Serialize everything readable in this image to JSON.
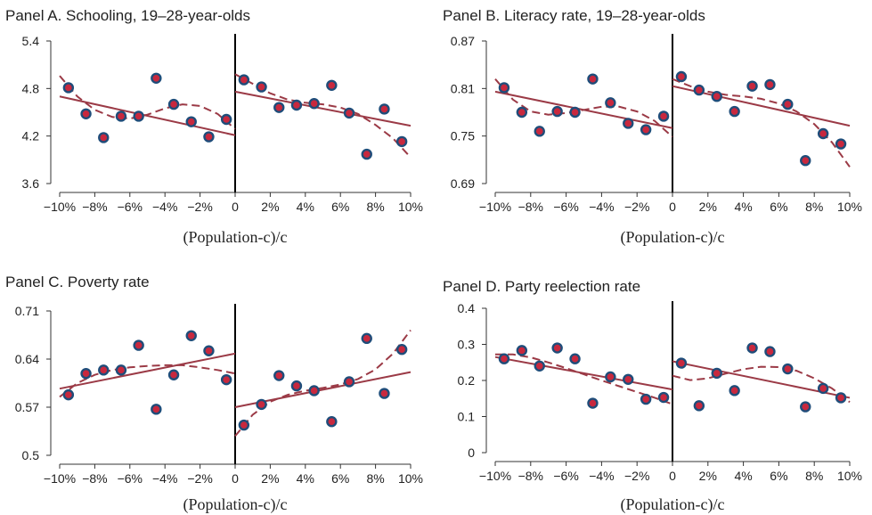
{
  "colors": {
    "fit": "#9b3a46",
    "marker_fill": "#c8283e",
    "marker_edge": "#1f4d7a",
    "axis": "#333333",
    "cutoff": "#000000"
  },
  "chart_data": [
    {
      "type": "scatter",
      "title": "Panel A. Schooling, 19–28-year-olds",
      "xlabel": "(Population-c)/c",
      "xlim": [
        -10,
        10
      ],
      "ylim": [
        3.6,
        5.4
      ],
      "xticks": [
        "−10%",
        "−8%",
        "−6%",
        "−4%",
        "−2%",
        "0",
        "2%",
        "4%",
        "6%",
        "8%",
        "10%"
      ],
      "yticks": [
        "3.6",
        "4.2",
        "4.8",
        "5.4"
      ],
      "x": [
        -9.5,
        -8.5,
        -7.5,
        -6.5,
        -5.5,
        -4.5,
        -3.5,
        -2.5,
        -1.5,
        -0.5,
        0.5,
        1.5,
        2.5,
        3.5,
        4.5,
        5.5,
        6.5,
        7.5,
        8.5,
        9.5
      ],
      "y": [
        4.81,
        4.48,
        4.18,
        4.45,
        4.45,
        4.93,
        4.6,
        4.38,
        4.19,
        4.41,
        4.91,
        4.82,
        4.56,
        4.59,
        4.61,
        4.84,
        4.49,
        3.97,
        4.54,
        4.13
      ],
      "linear_fit": {
        "left": [
          [
            -10,
            4.7
          ],
          [
            0,
            4.21
          ]
        ],
        "right": [
          [
            0,
            4.76
          ],
          [
            10,
            4.33
          ]
        ]
      },
      "poly_fit": {
        "left": [
          [
            -10,
            4.96
          ],
          [
            -9,
            4.7
          ],
          [
            -8,
            4.53
          ],
          [
            -7,
            4.44
          ],
          [
            -6,
            4.42
          ],
          [
            -5,
            4.47
          ],
          [
            -4,
            4.55
          ],
          [
            -3,
            4.6
          ],
          [
            -2,
            4.58
          ],
          [
            -1,
            4.48
          ],
          [
            0,
            4.29
          ]
        ],
        "right": [
          [
            0,
            4.98
          ],
          [
            1,
            4.86
          ],
          [
            2,
            4.74
          ],
          [
            3,
            4.66
          ],
          [
            4,
            4.62
          ],
          [
            5,
            4.6
          ],
          [
            6,
            4.56
          ],
          [
            7,
            4.48
          ],
          [
            8,
            4.34
          ],
          [
            9,
            4.17
          ],
          [
            10,
            3.93
          ]
        ]
      }
    },
    {
      "type": "scatter",
      "title": "Panel B. Literacy rate, 19–28-year-olds",
      "xlabel": "(Population-c)/c",
      "xlim": [
        -10,
        10
      ],
      "ylim": [
        0.69,
        0.87
      ],
      "xticks": [
        "−10%",
        "−8%",
        "−6%",
        "−4%",
        "−2%",
        "0",
        "2%",
        "4%",
        "6%",
        "8%",
        "10%"
      ],
      "yticks": [
        "0.69",
        "0.75",
        "0.81",
        "0.87"
      ],
      "x": [
        -9.5,
        -8.5,
        -7.5,
        -6.5,
        -5.5,
        -4.5,
        -3.5,
        -2.5,
        -1.5,
        -0.5,
        0.5,
        1.5,
        2.5,
        3.5,
        4.5,
        5.5,
        6.5,
        7.5,
        8.5,
        9.5
      ],
      "y": [
        0.811,
        0.78,
        0.756,
        0.781,
        0.78,
        0.822,
        0.792,
        0.766,
        0.758,
        0.775,
        0.825,
        0.808,
        0.8,
        0.781,
        0.813,
        0.815,
        0.79,
        0.719,
        0.753,
        0.74
      ],
      "linear_fit": {
        "left": [
          [
            -10,
            0.806
          ],
          [
            0,
            0.76
          ]
        ],
        "right": [
          [
            0,
            0.813
          ],
          [
            10,
            0.763
          ]
        ]
      },
      "poly_fit": {
        "left": [
          [
            -10,
            0.822
          ],
          [
            -9,
            0.796
          ],
          [
            -8,
            0.781
          ],
          [
            -7,
            0.777
          ],
          [
            -6,
            0.779
          ],
          [
            -5,
            0.783
          ],
          [
            -4,
            0.787
          ],
          [
            -3,
            0.787
          ],
          [
            -2,
            0.781
          ],
          [
            -1,
            0.769
          ],
          [
            0,
            0.749
          ]
        ],
        "right": [
          [
            0,
            0.822
          ],
          [
            1,
            0.813
          ],
          [
            2,
            0.806
          ],
          [
            3,
            0.802
          ],
          [
            4,
            0.8
          ],
          [
            5,
            0.797
          ],
          [
            6,
            0.791
          ],
          [
            7,
            0.781
          ],
          [
            8,
            0.765
          ],
          [
            9,
            0.742
          ],
          [
            10,
            0.711
          ]
        ]
      }
    },
    {
      "type": "scatter",
      "title": "Panel C. Poverty rate",
      "xlabel": "(Population-c)/c",
      "xlim": [
        -10,
        10
      ],
      "ylim": [
        0.5,
        0.71
      ],
      "xticks": [
        "−10%",
        "−8%",
        "−6%",
        "−4%",
        "−2%",
        "0",
        "2%",
        "4%",
        "6%",
        "8%",
        "10%"
      ],
      "yticks": [
        "0.5",
        "0.57",
        "0.64",
        "0.71"
      ],
      "x": [
        -9.5,
        -8.5,
        -7.5,
        -6.5,
        -5.5,
        -4.5,
        -3.5,
        -2.5,
        -1.5,
        -0.5,
        0.5,
        1.5,
        2.5,
        3.5,
        4.5,
        5.5,
        6.5,
        7.5,
        8.5,
        9.5
      ],
      "y": [
        0.588,
        0.619,
        0.624,
        0.624,
        0.66,
        0.567,
        0.617,
        0.674,
        0.652,
        0.61,
        0.544,
        0.574,
        0.616,
        0.601,
        0.594,
        0.549,
        0.607,
        0.67,
        0.59,
        0.654
      ],
      "linear_fit": {
        "left": [
          [
            -10,
            0.597
          ],
          [
            0,
            0.648
          ]
        ],
        "right": [
          [
            0,
            0.57
          ],
          [
            10,
            0.621
          ]
        ]
      },
      "poly_fit": {
        "left": [
          [
            -10,
            0.585
          ],
          [
            -9,
            0.605
          ],
          [
            -8,
            0.617
          ],
          [
            -7,
            0.624
          ],
          [
            -6,
            0.628
          ],
          [
            -5,
            0.63
          ],
          [
            -4,
            0.631
          ],
          [
            -3,
            0.631
          ],
          [
            -2,
            0.628
          ],
          [
            -1,
            0.624
          ],
          [
            0,
            0.619
          ]
        ],
        "right": [
          [
            0,
            0.528
          ],
          [
            1,
            0.559
          ],
          [
            2,
            0.578
          ],
          [
            3,
            0.588
          ],
          [
            4,
            0.594
          ],
          [
            5,
            0.598
          ],
          [
            6,
            0.603
          ],
          [
            7,
            0.611
          ],
          [
            8,
            0.625
          ],
          [
            9,
            0.648
          ],
          [
            10,
            0.682
          ]
        ]
      }
    },
    {
      "type": "scatter",
      "title": "Panel D. Party reelection rate",
      "xlabel": "(Population-c)/c",
      "xlim": [
        -10,
        10
      ],
      "ylim": [
        0,
        0.4
      ],
      "xticks": [
        "−10%",
        "−8%",
        "−6%",
        "−4%",
        "−2%",
        "0",
        "2%",
        "4%",
        "6%",
        "8%",
        "10%"
      ],
      "yticks": [
        "0",
        "0.1",
        "0.2",
        "0.3",
        "0.4"
      ],
      "x": [
        -9.5,
        -8.5,
        -7.5,
        -6.5,
        -5.5,
        -4.5,
        -3.5,
        -2.5,
        -1.5,
        -0.5,
        0.5,
        1.5,
        2.5,
        3.5,
        4.5,
        5.5,
        6.5,
        7.5,
        8.5,
        9.5
      ],
      "y": [
        0.26,
        0.283,
        0.24,
        0.29,
        0.26,
        0.137,
        0.21,
        0.203,
        0.148,
        0.153,
        0.248,
        0.13,
        0.22,
        0.172,
        0.29,
        0.28,
        0.232,
        0.127,
        0.178,
        0.152
      ],
      "linear_fit": {
        "left": [
          [
            -10,
            0.265
          ],
          [
            0,
            0.175
          ]
        ],
        "right": [
          [
            0,
            0.253
          ],
          [
            10,
            0.152
          ]
        ]
      },
      "poly_fit": {
        "left": [
          [
            -10,
            0.272
          ],
          [
            -9,
            0.272
          ],
          [
            -8,
            0.264
          ],
          [
            -7,
            0.25
          ],
          [
            -6,
            0.234
          ],
          [
            -5,
            0.217
          ],
          [
            -4,
            0.2
          ],
          [
            -3,
            0.184
          ],
          [
            -2,
            0.168
          ],
          [
            -1,
            0.152
          ],
          [
            0,
            0.134
          ]
        ],
        "right": [
          [
            0,
            0.213
          ],
          [
            1,
            0.201
          ],
          [
            2,
            0.206
          ],
          [
            3,
            0.219
          ],
          [
            4,
            0.231
          ],
          [
            5,
            0.238
          ],
          [
            6,
            0.237
          ],
          [
            7,
            0.227
          ],
          [
            8,
            0.206
          ],
          [
            9,
            0.178
          ],
          [
            10,
            0.14
          ]
        ]
      }
    }
  ]
}
